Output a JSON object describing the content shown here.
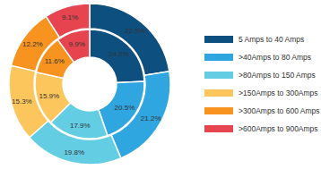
{
  "chart_data": {
    "type": "pie",
    "categories": [
      "5 Amps to 40 Amps",
      ">40Amps to 80 Amps",
      ">80Amps to 150 Amps",
      ">150Amps to 300Amps",
      ">300Amps to 600 Amps",
      ">600Amps to 900Amps"
    ],
    "colors": [
      "#0d4f7f",
      "#2fa6e0",
      "#63cde3",
      "#fdc65c",
      "#f7931e",
      "#e6444f"
    ],
    "series": [
      {
        "values": [
          22.5,
          21.2,
          19.8,
          15.3,
          12.2,
          9.1
        ],
        "value_labels": [
          "22.5%",
          "21.2%",
          "19.8%",
          "15.3%",
          "12.2%",
          "9.1%"
        ]
      },
      {
        "values": [
          24.2,
          20.5,
          17.9,
          15.9,
          11.6,
          9.9
        ],
        "value_labels": [
          "24.2%",
          "20.5%",
          "17.9%",
          "15.9%",
          "11.6%",
          "9.9%"
        ]
      }
    ],
    "data_labels": true,
    "legend": "right"
  }
}
